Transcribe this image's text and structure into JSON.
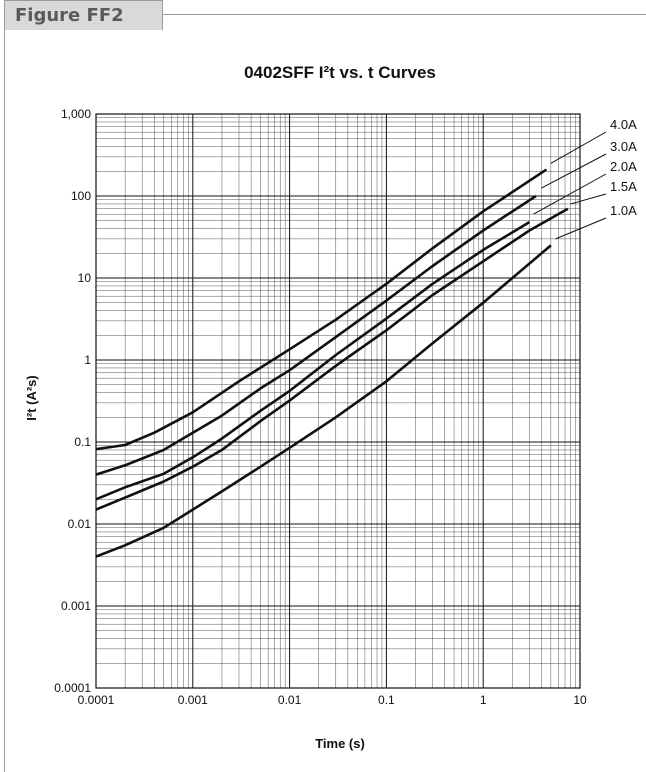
{
  "figure_label": "Figure FF2",
  "chart_data": {
    "type": "line",
    "title": "0402SFF I²t  vs. t Curves",
    "xlabel": "Time (s)",
    "ylabel": "I²t (A²s)",
    "x_scale": "log",
    "y_scale": "log",
    "xlim": [
      0.0001,
      10
    ],
    "ylim": [
      0.0001,
      1000
    ],
    "x_ticks": [
      {
        "value": 0.0001,
        "label": "0.0001"
      },
      {
        "value": 0.001,
        "label": "0.001"
      },
      {
        "value": 0.01,
        "label": "0.01"
      },
      {
        "value": 0.1,
        "label": "0.1"
      },
      {
        "value": 1,
        "label": "1"
      },
      {
        "value": 10,
        "label": "10"
      }
    ],
    "y_ticks": [
      {
        "value": 0.0001,
        "label": "0.0001"
      },
      {
        "value": 0.001,
        "label": "0.001"
      },
      {
        "value": 0.01,
        "label": "0.01"
      },
      {
        "value": 0.1,
        "label": "0.1"
      },
      {
        "value": 1,
        "label": "1"
      },
      {
        "value": 10,
        "label": "10"
      },
      {
        "value": 100,
        "label": "100"
      },
      {
        "value": 1000,
        "label": "1,000"
      }
    ],
    "grid": true,
    "legend": "labels at curve ends",
    "series": [
      {
        "name": "4.0A",
        "points": [
          [
            0.0001,
            0.082
          ],
          [
            0.0002,
            0.092
          ],
          [
            0.0004,
            0.13
          ],
          [
            0.001,
            0.23
          ],
          [
            0.003,
            0.55
          ],
          [
            0.01,
            1.35
          ],
          [
            0.03,
            3.1
          ],
          [
            0.1,
            8.5
          ],
          [
            0.3,
            23
          ],
          [
            1,
            65
          ],
          [
            4.5,
            210
          ]
        ]
      },
      {
        "name": "3.0A",
        "points": [
          [
            0.0001,
            0.04
          ],
          [
            0.0002,
            0.052
          ],
          [
            0.0005,
            0.08
          ],
          [
            0.001,
            0.13
          ],
          [
            0.002,
            0.21
          ],
          [
            0.005,
            0.45
          ],
          [
            0.01,
            0.75
          ],
          [
            0.03,
            1.9
          ],
          [
            0.1,
            5.3
          ],
          [
            0.3,
            14
          ],
          [
            1,
            38
          ],
          [
            3.5,
            100
          ]
        ]
      },
      {
        "name": "2.0A",
        "points": [
          [
            0.0001,
            0.02
          ],
          [
            0.0002,
            0.028
          ],
          [
            0.0005,
            0.041
          ],
          [
            0.001,
            0.065
          ],
          [
            0.002,
            0.11
          ],
          [
            0.005,
            0.24
          ],
          [
            0.01,
            0.42
          ],
          [
            0.03,
            1.15
          ],
          [
            0.1,
            3.2
          ],
          [
            0.3,
            8.5
          ],
          [
            1,
            22
          ],
          [
            3,
            48
          ]
        ]
      },
      {
        "name": "1.5A",
        "points": [
          [
            0.0001,
            0.015
          ],
          [
            0.0002,
            0.021
          ],
          [
            0.0005,
            0.033
          ],
          [
            0.001,
            0.05
          ],
          [
            0.002,
            0.08
          ],
          [
            0.005,
            0.18
          ],
          [
            0.01,
            0.32
          ],
          [
            0.03,
            0.85
          ],
          [
            0.1,
            2.3
          ],
          [
            0.3,
            6.2
          ],
          [
            1,
            16
          ],
          [
            3,
            38
          ],
          [
            7.5,
            70
          ]
        ]
      },
      {
        "name": "1.0A",
        "points": [
          [
            0.0001,
            0.004
          ],
          [
            0.0002,
            0.0055
          ],
          [
            0.0005,
            0.009
          ],
          [
            0.001,
            0.015
          ],
          [
            0.002,
            0.025
          ],
          [
            0.005,
            0.05
          ],
          [
            0.01,
            0.085
          ],
          [
            0.03,
            0.2
          ],
          [
            0.1,
            0.55
          ],
          [
            0.3,
            1.6
          ],
          [
            1,
            5
          ],
          [
            5,
            25
          ]
        ]
      }
    ]
  }
}
